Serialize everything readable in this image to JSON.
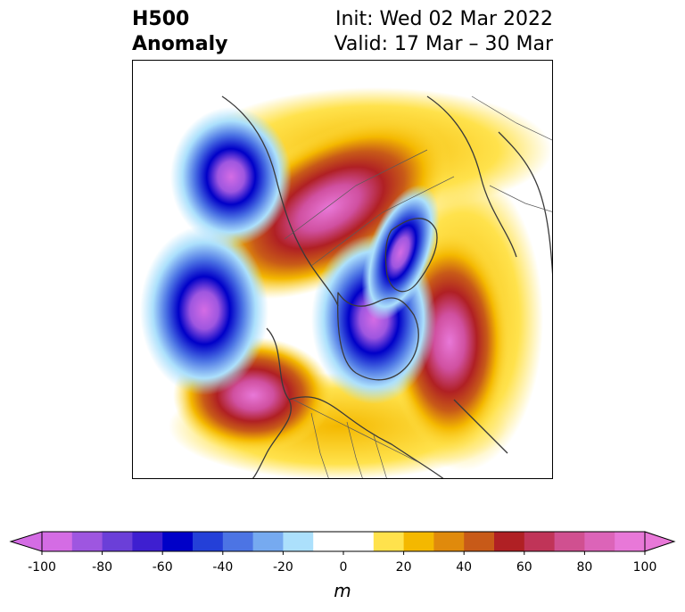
{
  "title": {
    "line1": "H500",
    "line2": "Anomaly"
  },
  "info": {
    "init": "Init: Wed 02 Mar 2022",
    "valid": "Valid: 17 Mar – 30 Mar"
  },
  "colorbar": {
    "unit": "m",
    "ticks": [
      "-100",
      "-80",
      "-60",
      "-40",
      "-20",
      "0",
      "20",
      "40",
      "60",
      "80",
      "100"
    ],
    "tick_values": [
      -100,
      -80,
      -60,
      -40,
      -20,
      0,
      20,
      40,
      60,
      80,
      100
    ],
    "colors": [
      "#d46ce4",
      "#9e56e0",
      "#6b3fd8",
      "#3e1fd0",
      "#0000c8",
      "#2440d8",
      "#4c74e4",
      "#76aaf0",
      "#ace0fc",
      "#ffffff",
      "#ffffff",
      "#ffe24c",
      "#f4b800",
      "#e08a0c",
      "#c85a18",
      "#b02024",
      "#c03458",
      "#d05090",
      "#dc64b8",
      "#e878d8"
    ],
    "extend_min_color": "#d46ce4",
    "extend_max_color": "#e878d8"
  }
}
